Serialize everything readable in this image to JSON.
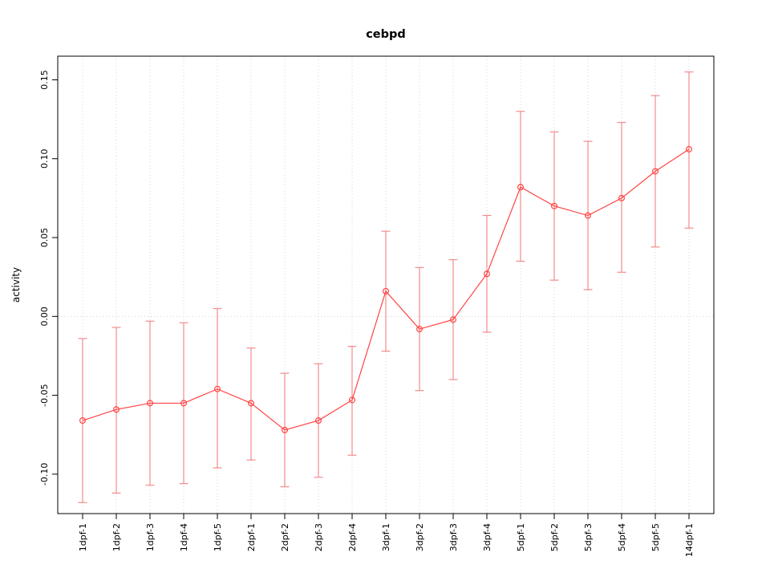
{
  "chart_data": {
    "type": "line",
    "title": "cebpd",
    "xlabel": "",
    "ylabel": "activity",
    "categories": [
      "1dpf-1",
      "1dpf-2",
      "1dpf-3",
      "1dpf-4",
      "1dpf-5",
      "2dpf-1",
      "2dpf-2",
      "2dpf-3",
      "2dpf-4",
      "3dpf-1",
      "3dpf-2",
      "3dpf-3",
      "3dpf-4",
      "5dpf-1",
      "5dpf-2",
      "5dpf-3",
      "5dpf-4",
      "5dpf-5",
      "14dpf-1"
    ],
    "series": [
      {
        "name": "activity",
        "values": [
          -0.066,
          -0.059,
          -0.055,
          -0.055,
          -0.046,
          -0.055,
          -0.072,
          -0.066,
          -0.053,
          0.016,
          -0.008,
          -0.002,
          0.027,
          0.082,
          0.07,
          0.064,
          0.075,
          0.092,
          0.106
        ],
        "lower": [
          -0.118,
          -0.112,
          -0.107,
          -0.106,
          -0.096,
          -0.091,
          -0.108,
          -0.102,
          -0.088,
          -0.022,
          -0.047,
          -0.04,
          -0.01,
          0.035,
          0.023,
          0.017,
          0.028,
          0.044,
          0.056
        ],
        "upper": [
          -0.014,
          -0.007,
          -0.003,
          -0.004,
          0.005,
          -0.02,
          -0.036,
          -0.03,
          -0.019,
          0.054,
          0.031,
          0.036,
          0.064,
          0.13,
          0.117,
          0.111,
          0.123,
          0.14,
          0.155
        ]
      }
    ],
    "ylim": [
      -0.125,
      0.165
    ],
    "yticks": [
      -0.1,
      -0.05,
      0.0,
      0.05,
      0.1,
      0.15
    ],
    "layout": {
      "grid_vertical_dotted": true,
      "zero_line_dotted": true,
      "legend": "none",
      "marker": "open-circle",
      "error_bars": true
    },
    "colors": {
      "line": "#ff4444",
      "point": "#ff4444",
      "errorbar": "#f28b8b",
      "grid": "#d4d4d4",
      "axis": "#000000",
      "text": "#000000",
      "background": "#ffffff"
    }
  }
}
